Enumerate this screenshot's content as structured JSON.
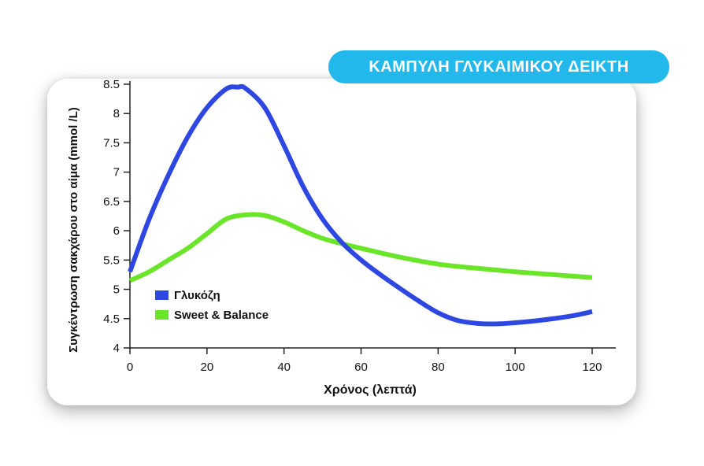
{
  "chart_data": {
    "type": "line",
    "title": "ΚΑΜΠΥΛΗ ΓΛΥΚΑΙΜΙΚΟΥ ΔΕΙΚΤΗ",
    "xlabel": "Χρόνος (λεπτά)",
    "ylabel": "Συγκέντρωση σακχάρου στο αίμα (mmol /L)",
    "xlim": [
      0,
      120
    ],
    "ylim": [
      4,
      8.5
    ],
    "xticks": [
      "0",
      "20",
      "40",
      "60",
      "80",
      "100",
      "120"
    ],
    "yticks": [
      "4",
      "4.5",
      "5",
      "5.5",
      "6",
      "6.5",
      "7",
      "7.5",
      "8",
      "8.5"
    ],
    "grid": false,
    "legend_position": "bottom-left",
    "series": [
      {
        "name": "Γλυκόζη",
        "color": "#2e47e0",
        "x": [
          0,
          5,
          10,
          15,
          20,
          25,
          28,
          30,
          35,
          40,
          45,
          50,
          55,
          60,
          65,
          70,
          75,
          80,
          85,
          90,
          95,
          100,
          105,
          110,
          115,
          120
        ],
        "y": [
          5.3,
          6.2,
          6.95,
          7.6,
          8.1,
          8.42,
          8.45,
          8.43,
          8.1,
          7.45,
          6.75,
          6.2,
          5.8,
          5.5,
          5.25,
          5.02,
          4.8,
          4.6,
          4.47,
          4.42,
          4.41,
          4.43,
          4.46,
          4.5,
          4.55,
          4.62
        ]
      },
      {
        "name": "Sweet & Balance",
        "color": "#6be52a",
        "x": [
          0,
          5,
          10,
          15,
          20,
          25,
          30,
          35,
          40,
          45,
          50,
          55,
          60,
          70,
          80,
          90,
          100,
          110,
          120
        ],
        "y": [
          5.15,
          5.3,
          5.5,
          5.7,
          5.95,
          6.2,
          6.27,
          6.26,
          6.15,
          6.0,
          5.87,
          5.78,
          5.7,
          5.55,
          5.43,
          5.36,
          5.3,
          5.25,
          5.2
        ]
      }
    ]
  }
}
